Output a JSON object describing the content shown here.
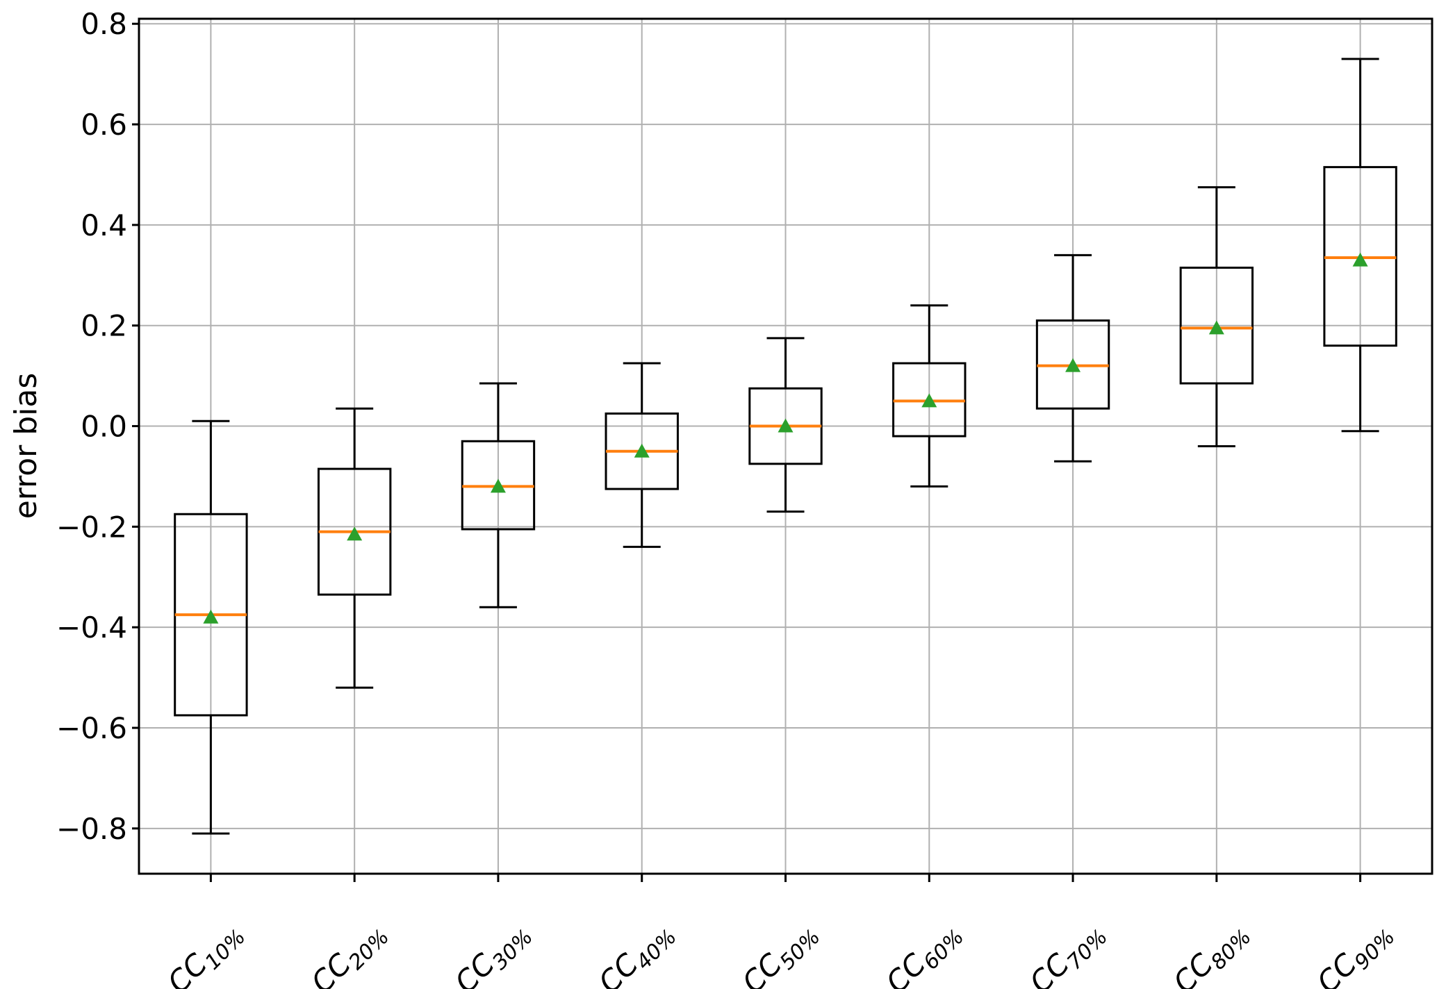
{
  "figure": {
    "background": "#ffffff"
  },
  "chart_data": {
    "type": "boxplot",
    "title": "",
    "xlabel": "",
    "ylabel": "error bias",
    "ylim": [
      -0.89,
      0.81
    ],
    "yticks": [
      -0.8,
      -0.6,
      -0.4,
      -0.2,
      0.0,
      0.2,
      0.4,
      0.6,
      0.8
    ],
    "grid": true,
    "legend": "none",
    "categories": [
      "CC10%",
      "CC20%",
      "CC30%",
      "CC40%",
      "CC50%",
      "CC60%",
      "CC70%",
      "CC80%",
      "CC90%"
    ],
    "series": [
      {
        "label_base": "CC",
        "label_sub": "10%",
        "whislo": -0.81,
        "q1": -0.575,
        "med": -0.375,
        "mean": -0.38,
        "q3": -0.175,
        "whishi": 0.01
      },
      {
        "label_base": "CC",
        "label_sub": "20%",
        "whislo": -0.52,
        "q1": -0.335,
        "med": -0.21,
        "mean": -0.215,
        "q3": -0.085,
        "whishi": 0.035
      },
      {
        "label_base": "CC",
        "label_sub": "30%",
        "whislo": -0.36,
        "q1": -0.205,
        "med": -0.12,
        "mean": -0.12,
        "q3": -0.03,
        "whishi": 0.085
      },
      {
        "label_base": "CC",
        "label_sub": "40%",
        "whislo": -0.24,
        "q1": -0.125,
        "med": -0.05,
        "mean": -0.05,
        "q3": 0.025,
        "whishi": 0.125
      },
      {
        "label_base": "CC",
        "label_sub": "50%",
        "whislo": -0.17,
        "q1": -0.075,
        "med": 0.0,
        "mean": 0.0,
        "q3": 0.075,
        "whishi": 0.175
      },
      {
        "label_base": "CC",
        "label_sub": "60%",
        "whislo": -0.12,
        "q1": -0.02,
        "med": 0.05,
        "mean": 0.05,
        "q3": 0.125,
        "whishi": 0.24
      },
      {
        "label_base": "CC",
        "label_sub": "70%",
        "whislo": -0.07,
        "q1": 0.035,
        "med": 0.12,
        "mean": 0.12,
        "q3": 0.21,
        "whishi": 0.34
      },
      {
        "label_base": "CC",
        "label_sub": "80%",
        "whislo": -0.04,
        "q1": 0.085,
        "med": 0.195,
        "mean": 0.195,
        "q3": 0.315,
        "whishi": 0.475
      },
      {
        "label_base": "CC",
        "label_sub": "90%",
        "whislo": -0.01,
        "q1": 0.16,
        "med": 0.335,
        "mean": 0.33,
        "q3": 0.515,
        "whishi": 0.73
      }
    ],
    "colors": {
      "box": "#000000",
      "whisker": "#000000",
      "median": "#ff7f0e",
      "mean_marker": "#2ca02c",
      "grid": "#b0b0b0",
      "spine": "#000000"
    }
  }
}
